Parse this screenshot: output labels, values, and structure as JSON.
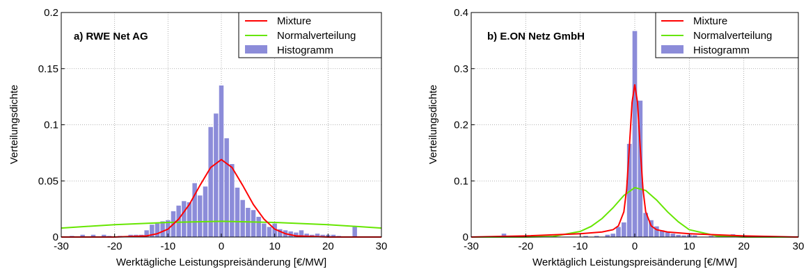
{
  "chart_data": [
    {
      "type": "bar",
      "title": "a)  RWE Net AG",
      "xlabel": "Werktägliche Leistungspreisänderung [€/MW]",
      "ylabel": "Verteilungsdichte",
      "xlim": [
        -30,
        30
      ],
      "ylim": [
        0,
        0.2
      ],
      "xticks": [
        "-30",
        "-20",
        "-10",
        "0",
        "10",
        "20",
        "30"
      ],
      "yticks": [
        "0",
        "0.05",
        "0.1",
        "0.15",
        "0.2"
      ],
      "grid": true,
      "legend_position": "top-right",
      "legend": [
        "Mixture",
        "Normalverteilung",
        "Histogramm"
      ],
      "colors": {
        "mixture": "#ff0000",
        "normal": "#66e600",
        "hist": "#8c8cd9"
      },
      "histogram": {
        "bin_width": 1,
        "x": [
          -28,
          -26,
          -24,
          -22,
          -21,
          -19,
          -17,
          -16,
          -15,
          -14,
          -13,
          -12,
          -11,
          -10,
          -9,
          -8,
          -7,
          -6,
          -5,
          -4,
          -3,
          -2,
          -1,
          0,
          1,
          2,
          3,
          4,
          5,
          6,
          7,
          8,
          9,
          10,
          11,
          12,
          13,
          14,
          15,
          16,
          17,
          18,
          19,
          20,
          21,
          22,
          25
        ],
        "density": [
          0.001,
          0.002,
          0.002,
          0.002,
          0.001,
          0.001,
          0.002,
          0.002,
          0.002,
          0.006,
          0.011,
          0.012,
          0.014,
          0.015,
          0.023,
          0.028,
          0.032,
          0.031,
          0.048,
          0.037,
          0.045,
          0.098,
          0.11,
          0.135,
          0.088,
          0.065,
          0.044,
          0.033,
          0.026,
          0.024,
          0.018,
          0.012,
          0.009,
          0.012,
          0.007,
          0.006,
          0.005,
          0.004,
          0.006,
          0.003,
          0.002,
          0.003,
          0.002,
          0.002,
          0.002,
          0.001,
          0.009
        ]
      },
      "mixture": {
        "x": [
          -30,
          -20,
          -14,
          -12,
          -10,
          -8,
          -6,
          -4,
          -2,
          0,
          2,
          4,
          6,
          8,
          10,
          12,
          14,
          20,
          30
        ],
        "y": [
          0,
          0,
          0.001,
          0.003,
          0.007,
          0.016,
          0.029,
          0.046,
          0.062,
          0.069,
          0.062,
          0.046,
          0.029,
          0.016,
          0.007,
          0.003,
          0.001,
          0,
          0
        ]
      },
      "normal": {
        "x": [
          -30,
          -20,
          -10,
          0,
          10,
          20,
          30
        ],
        "y": [
          0.008,
          0.011,
          0.013,
          0.014,
          0.013,
          0.011,
          0.008
        ]
      }
    },
    {
      "type": "bar",
      "title": "b)  E.ON Netz GmbH",
      "xlabel": "Werktäglich Leistungspreisänderung [€/MW]",
      "ylabel": "Verteilungsdichte",
      "xlim": [
        -30,
        30
      ],
      "ylim": [
        0,
        0.4
      ],
      "xticks": [
        "-30",
        "-20",
        "-10",
        "0",
        "10",
        "20",
        "30"
      ],
      "yticks": [
        "0",
        "0.1",
        "0.2",
        "0.3",
        "0.4"
      ],
      "grid": true,
      "legend_position": "top-right",
      "legend": [
        "Mixture",
        "Normalverteilung",
        "Histogramm"
      ],
      "colors": {
        "mixture": "#ff0000",
        "normal": "#66e600",
        "hist": "#8c8cd9"
      },
      "histogram": {
        "bin_width": 1,
        "x": [
          -24,
          -15,
          -9,
          -7,
          -5,
          -4,
          -3,
          -2,
          -1,
          0,
          1,
          2,
          3,
          4,
          5,
          6,
          7,
          8,
          9,
          10,
          11,
          14,
          18
        ],
        "density": [
          0.006,
          0.002,
          0.002,
          0.002,
          0.004,
          0.006,
          0.018,
          0.026,
          0.166,
          0.367,
          0.243,
          0.043,
          0.03,
          0.019,
          0.012,
          0.009,
          0.006,
          0.004,
          0.003,
          0.004,
          0.003,
          0.002,
          0.005
        ]
      },
      "mixture": {
        "x": [
          -30,
          -20,
          -10,
          -6,
          -4,
          -3,
          -2,
          -1.5,
          -1,
          -0.5,
          0,
          0.5,
          1,
          1.5,
          2,
          3,
          4,
          6,
          10,
          20,
          30
        ],
        "y": [
          0,
          0.002,
          0.006,
          0.009,
          0.013,
          0.02,
          0.045,
          0.085,
          0.16,
          0.24,
          0.272,
          0.24,
          0.16,
          0.085,
          0.045,
          0.02,
          0.013,
          0.009,
          0.006,
          0.002,
          0
        ]
      },
      "normal": {
        "x": [
          -30,
          -20,
          -15,
          -10,
          -8,
          -6,
          -4,
          -2,
          0,
          2,
          4,
          6,
          8,
          10,
          15,
          20,
          30
        ],
        "y": [
          0,
          0,
          0.001,
          0.01,
          0.019,
          0.033,
          0.052,
          0.074,
          0.088,
          0.083,
          0.066,
          0.045,
          0.027,
          0.013,
          0.002,
          0,
          0
        ]
      }
    }
  ]
}
